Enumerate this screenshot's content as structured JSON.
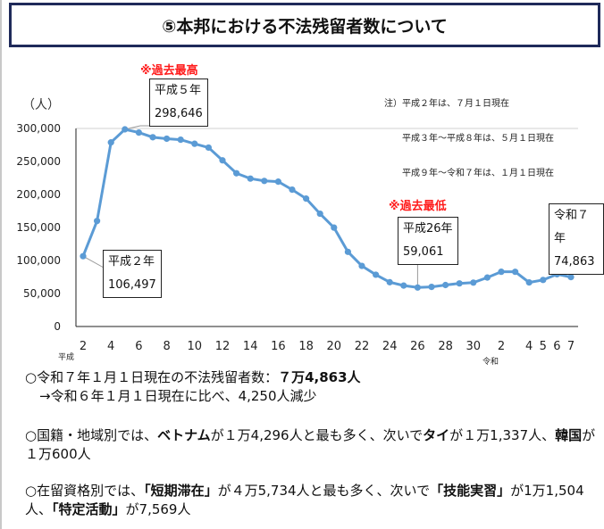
{
  "title": "⑤本邦における不法残留者数について",
  "chart_data": {
    "type": "line",
    "ylabel": "（人）",
    "ylim": [
      0,
      300000
    ],
    "yticks": [
      "300,000",
      "250,000",
      "200,000",
      "150,000",
      "100,000",
      "50,000",
      "0"
    ],
    "ytick_values": [
      300000,
      250000,
      200000,
      150000,
      100000,
      50000,
      0
    ],
    "grid": "top line only",
    "era_labels": {
      "heisei": "平成",
      "reiwa": "令和"
    },
    "x_labels": [
      "2",
      "",
      "4",
      "",
      "6",
      "",
      "8",
      "",
      "10",
      "",
      "12",
      "",
      "14",
      "",
      "16",
      "",
      "18",
      "",
      "20",
      "",
      "22",
      "",
      "24",
      "",
      "26",
      "",
      "28",
      "",
      "30",
      "",
      "2",
      "",
      "4",
      "5",
      "6",
      "7"
    ],
    "values": [
      106497,
      159828,
      278892,
      298646,
      293800,
      286704,
      284500,
      282986,
      276810,
      271048,
      251697,
      232121,
      224067,
      220552,
      219418,
      207299,
      193745,
      170839,
      149785,
      113072,
      91778,
      78488,
      67065,
      62009,
      59061,
      60007,
      62818,
      65270,
      66498,
      74167,
      82892,
      82868,
      66759,
      70491,
      79113,
      74863
    ],
    "color": "#5b9bd5",
    "annotations": {
      "peak_mark": "※過去最高",
      "low_mark": "※過去最低",
      "peak": {
        "year": "平成５年",
        "value": "298,646"
      },
      "start": {
        "year": "平成２年",
        "value": "106,497"
      },
      "low": {
        "year": "平成26年",
        "value": "59,061"
      },
      "latest": {
        "year": "令和７年",
        "value": "74,863"
      }
    },
    "note": [
      "注）平成２年は、７月１日現在",
      "　　平成３年～平成８年は、５月１日現在",
      "　　平成９年～令和７年は、１月１日現在"
    ]
  },
  "summary": {
    "p1_a": "○令和７年１月１日現在の不法残留者数：",
    "p1_b": "７万4,863人",
    "p1_c": "→令和６年１月１日現在に比べ、4,250人減少",
    "p2_a": "○国籍・地域別では、",
    "p2_b": "ベトナム",
    "p2_c": "が１万4,296人と最も多く、次いで",
    "p2_d": "タイ",
    "p2_e": "が１万1,337人、",
    "p2_f": "韓国",
    "p2_g": "が１万600人",
    "p3_a": "○在留資格別では、",
    "p3_b": "「短期滞在」",
    "p3_c": "が４万5,734人と最も多く、次いで",
    "p3_d": "「技能実習」",
    "p3_e": "が1万1,504人、",
    "p3_f": "「特定活動」",
    "p3_g": "が7,569人"
  }
}
